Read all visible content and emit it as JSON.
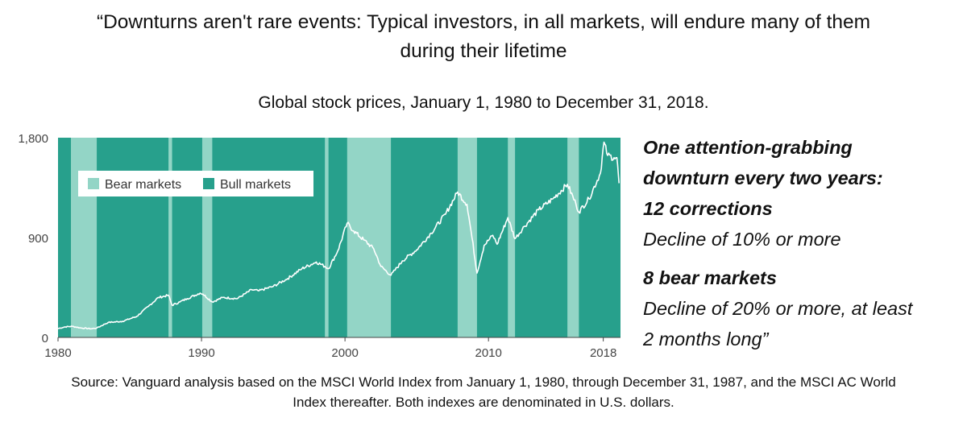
{
  "header": {
    "quote_line1": "“Downturns aren't rare events: Typical investors, in all markets, will endure many of them",
    "quote_line2": "during their lifetime",
    "subtitle": "Global stock prices, January 1, 1980 to December 31, 2018."
  },
  "side_panel": {
    "line1": "One attention-grabbing",
    "line2": "downturn every two years:",
    "line3": "12 corrections",
    "line4": "Decline of 10% or more",
    "line5": "8 bear markets",
    "line6": "Decline of 20% or more, at least",
    "line7": "2 months long”"
  },
  "source": {
    "line1": "Source: Vanguard analysis based on the MSCI World Index from January 1, 1980, through December 31, 1987, and the MSCI AC World",
    "line2": "Index thereafter. Both indexes are denominated in U.S. dollars."
  },
  "colors": {
    "bull": "#27a08c",
    "bear": "#93d5c6",
    "line": "#ffffff",
    "axis": "#444444"
  },
  "chart_data": {
    "type": "line",
    "xlim": [
      1980,
      2019.2
    ],
    "ylim": [
      0,
      1800
    ],
    "x_ticks": [
      {
        "value": 1980,
        "label": "1980"
      },
      {
        "value": 1990,
        "label": "1990"
      },
      {
        "value": 2000,
        "label": "2000"
      },
      {
        "value": 2010,
        "label": "2010"
      },
      {
        "value": 2018,
        "label": "2018"
      }
    ],
    "y_ticks": [
      {
        "value": 0,
        "label": "0"
      },
      {
        "value": 900,
        "label": "900"
      },
      {
        "value": 1800,
        "label": "1,800"
      }
    ],
    "legend": {
      "position": "top-left",
      "items": [
        {
          "label": "Bear markets",
          "color_key": "bear"
        },
        {
          "label": "Bull markets",
          "color_key": "bull"
        }
      ]
    },
    "bear_markets": [
      [
        1980.9,
        1982.7
      ],
      [
        1987.7,
        1987.95
      ],
      [
        1990.05,
        1990.75
      ],
      [
        1998.6,
        1998.85
      ],
      [
        2000.15,
        2003.2
      ],
      [
        2007.85,
        2009.2
      ],
      [
        2011.35,
        2011.85
      ],
      [
        2015.5,
        2016.3
      ]
    ],
    "series": [
      {
        "x": [
          1980,
          1980.5,
          1981,
          1981.6,
          1982.3,
          1982.7,
          1983.5,
          1984.5,
          1985.5,
          1986.3,
          1987,
          1987.7,
          1987.95,
          1988.5,
          1989,
          1989.9,
          1990.1,
          1990.75,
          1991.5,
          1992.5,
          1993.5,
          1994,
          1995,
          1996,
          1997,
          1998,
          1998.6,
          1998.85,
          1999.5,
          2000.15,
          2000.6,
          2001.3,
          2002,
          2002.5,
          2003.2,
          2004,
          2005,
          2006,
          2007,
          2007.85,
          2008.5,
          2008.85,
          2009.2,
          2009.7,
          2010.3,
          2010.6,
          2011.35,
          2011.85,
          2012.5,
          2013.5,
          2014.5,
          2015.5,
          2016.1,
          2016.3,
          2017,
          2017.8,
          2018.05,
          2018.3,
          2018.75,
          2018.95,
          2019.1
        ],
        "values": [
          80,
          95,
          100,
          85,
          78,
          85,
          135,
          145,
          190,
          280,
          360,
          380,
          290,
          320,
          350,
          400,
          390,
          320,
          360,
          350,
          430,
          420,
          460,
          530,
          620,
          680,
          640,
          620,
          780,
          1030,
          960,
          880,
          800,
          640,
          560,
          690,
          790,
          940,
          1110,
          1310,
          1200,
          900,
          580,
          830,
          920,
          840,
          1080,
          890,
          1000,
          1150,
          1250,
          1380,
          1200,
          1130,
          1250,
          1480,
          1760,
          1640,
          1620,
          1620,
          1390
        ]
      }
    ]
  }
}
